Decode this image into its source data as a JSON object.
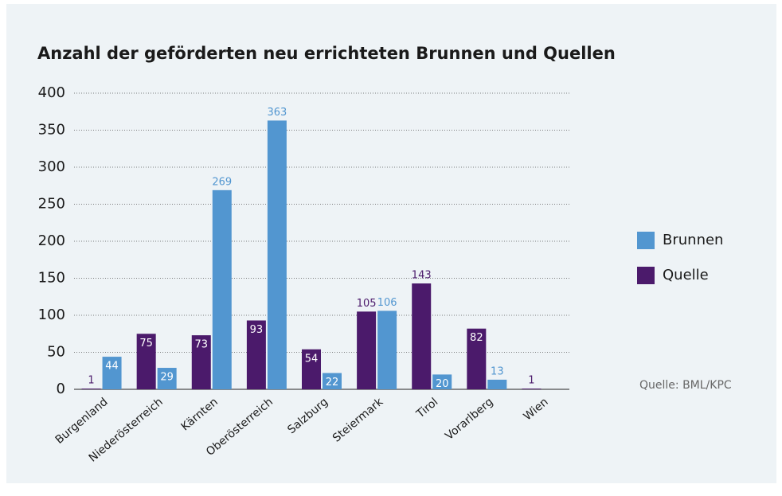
{
  "chart_data": {
    "type": "bar",
    "title": "Anzahl der geförderten neu errichteten Brunnen und Quellen",
    "categories": [
      "Burgenland",
      "Niederösterreich",
      "Kärnten",
      "Oberösterreich",
      "Salzburg",
      "Steiermark",
      "Tirol",
      "Vorarlberg",
      "Wien"
    ],
    "series": [
      {
        "name": "Brunnen",
        "color": "#5296d0",
        "values": [
          44,
          29,
          269,
          363,
          22,
          106,
          20,
          13,
          null
        ]
      },
      {
        "name": "Quelle",
        "color": "#4b1a6b",
        "values": [
          1,
          75,
          73,
          93,
          54,
          105,
          143,
          82,
          1
        ]
      }
    ],
    "ylim": [
      0,
      400
    ],
    "yticks": [
      0,
      50,
      100,
      150,
      200,
      250,
      300,
      350,
      400
    ],
    "grid": true,
    "legend": "right",
    "source": "Quelle: BML/KPC"
  }
}
